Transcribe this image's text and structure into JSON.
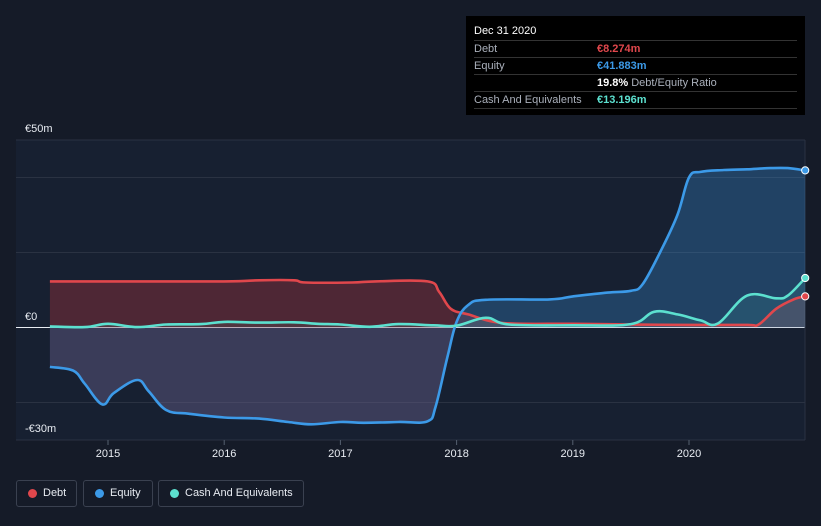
{
  "tooltip": {
    "date": "Dec 31 2020",
    "rows": [
      {
        "label": "Debt",
        "value": "€8.274m",
        "color": "#e0474c"
      },
      {
        "label": "Equity",
        "value": "€41.883m",
        "color": "#3c9ae8"
      },
      {
        "label": "",
        "value": "19.8%",
        "suffix": "Debt/Equity Ratio",
        "color": "#ffffff"
      },
      {
        "label": "Cash And Equivalents",
        "value": "€13.196m",
        "color": "#5ce0cf"
      }
    ]
  },
  "legend": [
    {
      "label": "Debt",
      "color": "#e0474c"
    },
    {
      "label": "Equity",
      "color": "#3c9ae8"
    },
    {
      "label": "Cash And Equivalents",
      "color": "#5ce0cf"
    }
  ],
  "chart_data": {
    "type": "area",
    "x_ticks": [
      "2015",
      "2016",
      "2017",
      "2018",
      "2019",
      "2020"
    ],
    "y_ticks": [
      "€50m",
      "€0",
      "-€30m"
    ],
    "ylim": [
      -30,
      50
    ],
    "series": [
      {
        "name": "Debt",
        "color": "#e0474c",
        "points": [
          [
            2014.5,
            12.3
          ],
          [
            2015.0,
            12.3
          ],
          [
            2016.0,
            12.3
          ],
          [
            2016.3,
            12.6
          ],
          [
            2016.6,
            12.6
          ],
          [
            2016.7,
            12.0
          ],
          [
            2017.1,
            12.0
          ],
          [
            2017.3,
            12.3
          ],
          [
            2017.75,
            12.3
          ],
          [
            2017.85,
            9.5
          ],
          [
            2017.95,
            5.0
          ],
          [
            2018.1,
            3.5
          ],
          [
            2018.4,
            1.2
          ],
          [
            2019.0,
            1.0
          ],
          [
            2019.5,
            0.8
          ],
          [
            2020.0,
            0.7
          ],
          [
            2020.5,
            0.7
          ],
          [
            2020.6,
            0.8
          ],
          [
            2020.75,
            5.0
          ],
          [
            2020.9,
            7.5
          ],
          [
            2021.0,
            8.3
          ]
        ]
      },
      {
        "name": "Equity",
        "color": "#3c9ae8",
        "points": [
          [
            2014.5,
            -10.5
          ],
          [
            2014.7,
            -11.5
          ],
          [
            2014.8,
            -15.0
          ],
          [
            2014.95,
            -20.5
          ],
          [
            2015.05,
            -17.5
          ],
          [
            2015.25,
            -14.0
          ],
          [
            2015.35,
            -17.0
          ],
          [
            2015.5,
            -22.0
          ],
          [
            2015.7,
            -23.0
          ],
          [
            2016.0,
            -24.0
          ],
          [
            2016.3,
            -24.3
          ],
          [
            2016.55,
            -25.2
          ],
          [
            2016.75,
            -25.8
          ],
          [
            2017.0,
            -25.2
          ],
          [
            2017.2,
            -25.4
          ],
          [
            2017.5,
            -25.2
          ],
          [
            2017.75,
            -25.0
          ],
          [
            2017.82,
            -21.0
          ],
          [
            2017.92,
            -8.0
          ],
          [
            2018.0,
            1.5
          ],
          [
            2018.1,
            6.0
          ],
          [
            2018.25,
            7.4
          ],
          [
            2018.8,
            7.5
          ],
          [
            2019.0,
            8.3
          ],
          [
            2019.3,
            9.3
          ],
          [
            2019.5,
            9.8
          ],
          [
            2019.6,
            11.5
          ],
          [
            2019.75,
            20.0
          ],
          [
            2019.9,
            30.0
          ],
          [
            2020.0,
            40.0
          ],
          [
            2020.1,
            41.5
          ],
          [
            2020.3,
            42.0
          ],
          [
            2020.5,
            42.2
          ],
          [
            2020.7,
            42.5
          ],
          [
            2020.85,
            42.5
          ],
          [
            2021.0,
            41.9
          ]
        ]
      },
      {
        "name": "Cash And Equivalents",
        "color": "#5ce0cf",
        "points": [
          [
            2014.5,
            0.3
          ],
          [
            2014.8,
            0.1
          ],
          [
            2015.0,
            1.0
          ],
          [
            2015.25,
            0.1
          ],
          [
            2015.5,
            0.8
          ],
          [
            2015.8,
            0.9
          ],
          [
            2016.0,
            1.5
          ],
          [
            2016.3,
            1.3
          ],
          [
            2016.6,
            1.4
          ],
          [
            2016.8,
            1.0
          ],
          [
            2017.0,
            0.8
          ],
          [
            2017.25,
            0.2
          ],
          [
            2017.5,
            0.9
          ],
          [
            2017.8,
            0.6
          ],
          [
            2018.0,
            0.5
          ],
          [
            2018.25,
            2.6
          ],
          [
            2018.45,
            0.8
          ],
          [
            2019.0,
            0.6
          ],
          [
            2019.5,
            0.9
          ],
          [
            2019.7,
            4.2
          ],
          [
            2019.9,
            3.5
          ],
          [
            2020.1,
            1.9
          ],
          [
            2020.25,
            1.1
          ],
          [
            2020.5,
            8.5
          ],
          [
            2020.75,
            7.8
          ],
          [
            2020.85,
            8.5
          ],
          [
            2021.0,
            13.2
          ]
        ]
      }
    ]
  }
}
